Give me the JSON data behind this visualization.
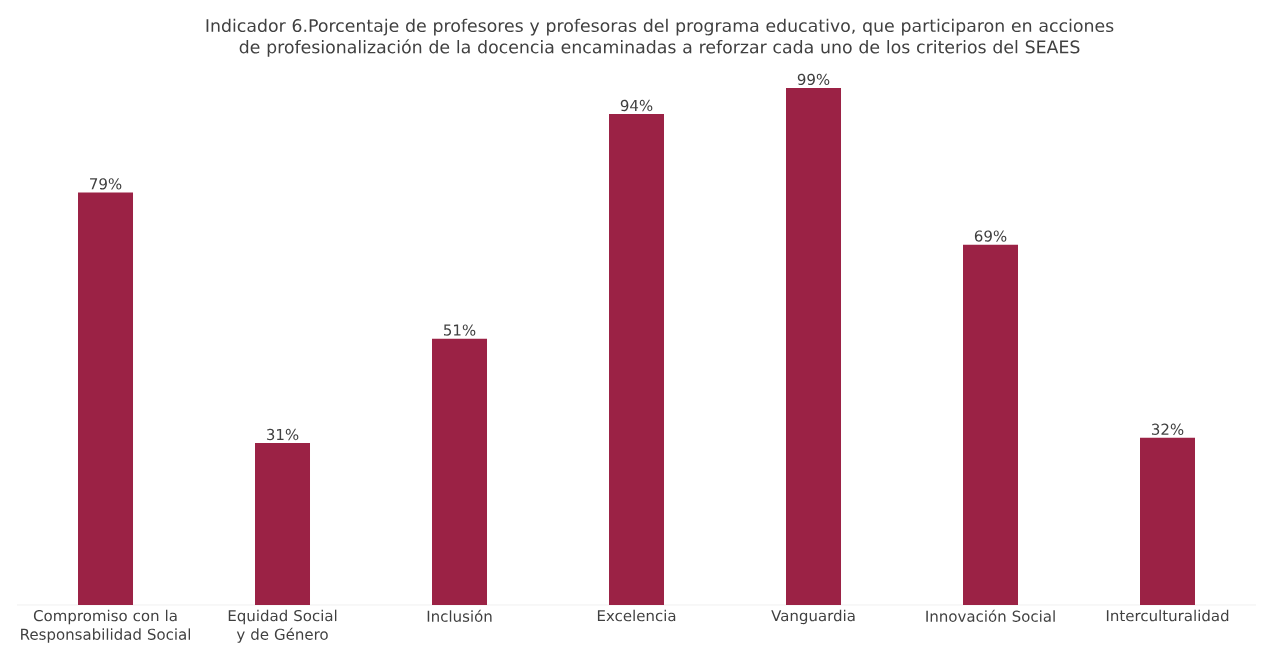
{
  "chart_data": {
    "type": "bar",
    "title": "Indicador 6.Porcentaje de profesores y profesoras del programa educativo, que participaron en acciones de profesionalización de la docencia encaminadas a reforzar cada uno de los criterios del SEAES",
    "categories": [
      "Compromiso con la Responsabilidad Social",
      "Equidad Social y de Género",
      "Inclusión",
      "Excelencia",
      "Vanguardia",
      "Innovación Social",
      "Interculturalidad"
    ],
    "values": [
      79,
      31,
      51,
      94,
      99,
      69,
      32
    ],
    "value_labels": [
      "79%",
      "31%",
      "51%",
      "94%",
      "99%",
      "69%",
      "32%"
    ],
    "color": "#9b2245"
  }
}
